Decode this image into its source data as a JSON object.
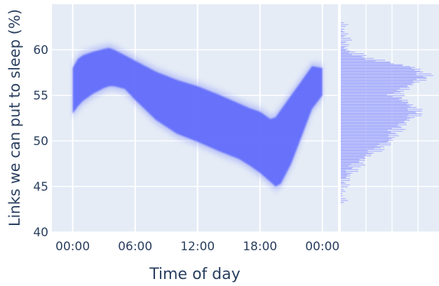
{
  "chart_data": {
    "type": "scatter",
    "xlabel": "Time of day",
    "ylabel": "Links we can put to sleep (%)",
    "x_tick_labels": [
      "00:00",
      "06:00",
      "12:00",
      "18:00",
      "00:00"
    ],
    "x_tick_hours": [
      0,
      6,
      12,
      18,
      24
    ],
    "xlim_hours": [
      -2,
      25.5
    ],
    "y_ticks": [
      40,
      45,
      50,
      55,
      60
    ],
    "ylim": [
      40,
      65
    ],
    "grid": true,
    "marker_color": "#636efa",
    "histogram_color": "#a3a9fc",
    "background_color": "#e5ecf6",
    "band": {
      "hours": [
        0,
        0.5,
        1,
        2,
        3,
        3.5,
        4,
        5,
        6,
        8,
        10,
        12,
        14,
        16,
        17,
        18,
        19,
        19.5,
        20,
        21,
        22,
        23,
        24
      ],
      "upper": [
        58.0,
        59.0,
        59.4,
        59.8,
        60.1,
        60.2,
        60.0,
        59.4,
        58.8,
        57.6,
        56.7,
        56.0,
        55.1,
        54.1,
        53.6,
        53.2,
        52.4,
        52.6,
        53.4,
        55.0,
        56.6,
        58.2,
        58.0
      ],
      "lower": [
        53.0,
        53.8,
        54.4,
        55.2,
        55.8,
        56.0,
        56.0,
        55.7,
        54.5,
        52.3,
        50.8,
        49.9,
        48.9,
        48.0,
        47.3,
        46.5,
        45.5,
        45.0,
        45.3,
        47.5,
        50.5,
        53.5,
        55.0
      ]
    },
    "histogram": {
      "y": [
        47,
        48,
        49,
        50,
        51,
        52,
        53,
        54,
        55,
        56,
        57,
        58,
        59,
        60
      ],
      "density": [
        0.15,
        0.25,
        0.4,
        0.55,
        0.6,
        0.7,
        0.85,
        0.75,
        0.6,
        0.75,
        0.95,
        0.8,
        0.3,
        0.05
      ]
    }
  }
}
